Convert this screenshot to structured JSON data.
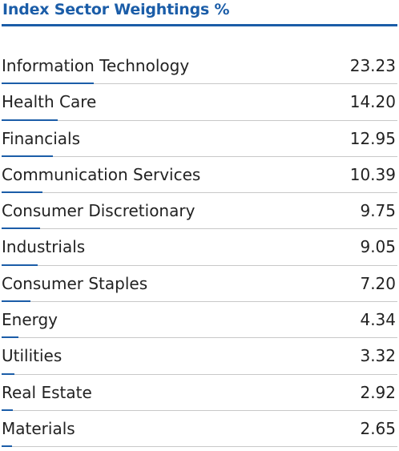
{
  "title": "Index Sector Weightings %",
  "colors": {
    "accent": "#1b5da8",
    "text": "#222222",
    "divider": "#c8c8c8"
  },
  "chart_data": {
    "type": "bar",
    "title": "Index Sector Weightings %",
    "categories": [
      "Information Technology",
      "Health Care",
      "Financials",
      "Communication Services",
      "Consumer Discretionary",
      "Industrials",
      "Consumer Staples",
      "Energy",
      "Utilities",
      "Real Estate",
      "Materials"
    ],
    "values": [
      23.23,
      14.2,
      12.95,
      10.39,
      9.75,
      9.05,
      7.2,
      4.34,
      3.32,
      2.92,
      2.65
    ],
    "value_labels": [
      "23.23",
      "14.20",
      "12.95",
      "10.39",
      "9.75",
      "9.05",
      "7.20",
      "4.34",
      "3.32",
      "2.92",
      "2.65"
    ],
    "orientation": "horizontal",
    "xlim": [
      0,
      100
    ],
    "grid": false,
    "legend": "none"
  }
}
